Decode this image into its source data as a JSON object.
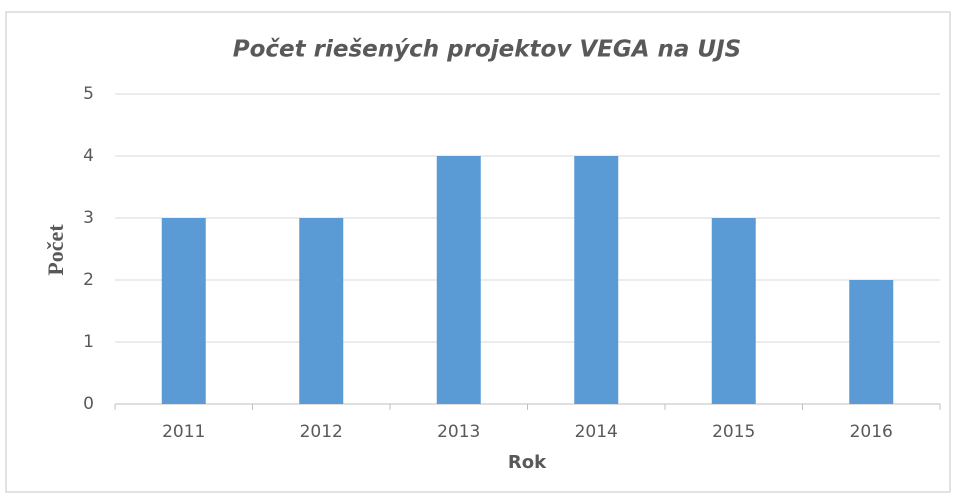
{
  "chart_data": {
    "type": "bar",
    "title": "Počet riešených projektov VEGA na UJS",
    "categories": [
      "2011",
      "2012",
      "2013",
      "2014",
      "2015",
      "2016"
    ],
    "values": [
      3,
      3,
      4,
      4,
      3,
      2
    ],
    "color": "#5b9bd5",
    "xlabel": "Rok",
    "ylabel": "Počet",
    "ylim": [
      0,
      5
    ],
    "yticks": [
      0,
      1,
      2,
      3,
      4,
      5
    ],
    "grid": true
  }
}
